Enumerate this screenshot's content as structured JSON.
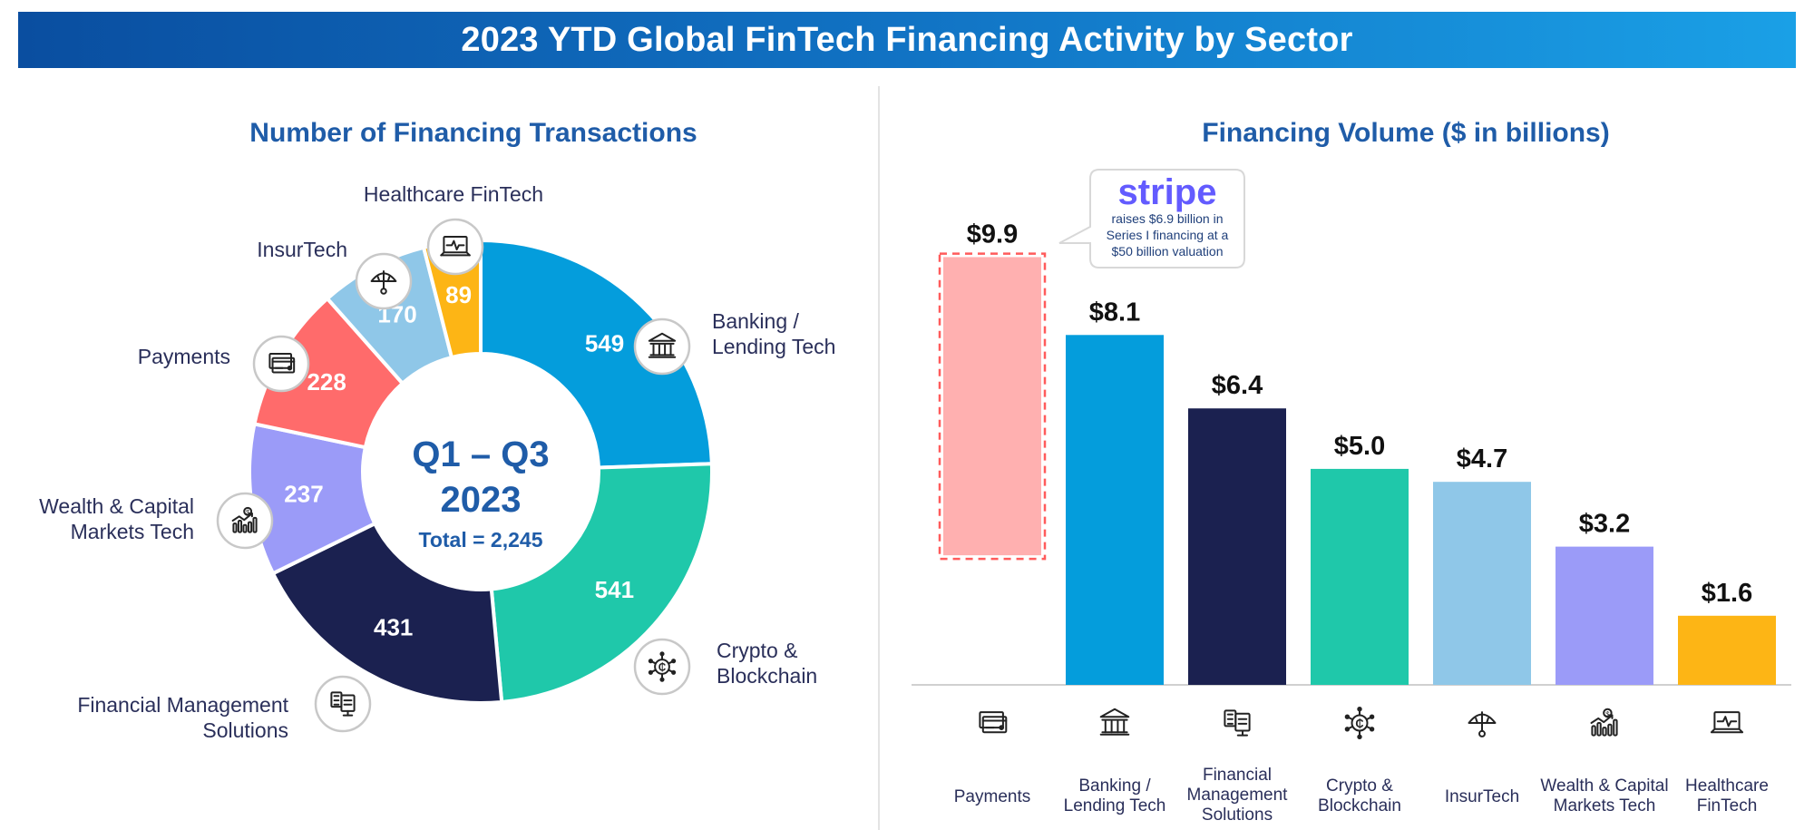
{
  "banner": {
    "title": "2023 YTD Global FinTech Financing Activity by Sector"
  },
  "left_panel": {
    "title": "Number of Financing Transactions",
    "center": {
      "line1": "Q1 – Q3",
      "line2": "2023",
      "total": "Total = 2,245"
    }
  },
  "right_panel": {
    "title": "Financing Volume ($ in billions)",
    "callout": {
      "brand": "stripe",
      "lines": [
        "raises $6.9 billion in",
        "Series I financing at a",
        "$50 billion valuation"
      ]
    }
  },
  "colors": {
    "banking": "#049ddc",
    "crypto": "#1fc8aa",
    "finmgmt": "#1b2150",
    "wealth": "#9b9bf8",
    "payments": "#ff6b6b",
    "payments_highlight": "#ffb0b0",
    "insurtech": "#8fc7e8",
    "healthcare": "#fdb515",
    "title_blue": "#1f5ca8",
    "label_navy": "#2a2f5a",
    "stripe_purple": "#635bff"
  },
  "chart_data": [
    {
      "type": "pie",
      "title": "Number of Financing Transactions",
      "categories": [
        "Banking / Lending Tech",
        "Crypto & Blockchain",
        "Financial Management Solutions",
        "Wealth & Capital Markets Tech",
        "Payments",
        "InsurTech",
        "Healthcare FinTech"
      ],
      "values": [
        549,
        541,
        431,
        237,
        228,
        170,
        89
      ],
      "colors": [
        "#049ddc",
        "#1fc8aa",
        "#1b2150",
        "#9b9bf8",
        "#ff6b6b",
        "#8fc7e8",
        "#fdb515"
      ],
      "icons": [
        "bank-icon",
        "crypto-icon",
        "finmgmt-icon",
        "wealth-icon",
        "payments-icon",
        "insurtech-icon",
        "healthcare-icon"
      ],
      "total": 2245
    },
    {
      "type": "bar",
      "title": "Financing Volume ($ in billions)",
      "categories": [
        "Payments",
        "Banking / Lending Tech",
        "Financial Management Solutions",
        "Crypto & Blockchain",
        "InsurTech",
        "Wealth & Capital Markets Tech",
        "Healthcare FinTech"
      ],
      "values": [
        9.9,
        8.1,
        6.4,
        5.0,
        4.7,
        3.2,
        1.6
      ],
      "value_labels": [
        "$9.9",
        "$8.1",
        "$6.4",
        "$5.0",
        "$4.7",
        "$3.2",
        "$1.6"
      ],
      "highlight": {
        "category": "Payments",
        "portion": 6.9
      },
      "colors": [
        "#ff6b6b",
        "#049ddc",
        "#1b2150",
        "#1fc8aa",
        "#8fc7e8",
        "#9b9bf8",
        "#fdb515"
      ],
      "icons": [
        "payments-icon",
        "bank-icon",
        "finmgmt-icon",
        "crypto-icon",
        "insurtech-icon",
        "wealth-icon",
        "healthcare-icon"
      ],
      "ylim": [
        0,
        10.5
      ]
    }
  ],
  "donut_labels": [
    {
      "lines": [
        "Banking /",
        "Lending Tech"
      ]
    },
    {
      "lines": [
        "Crypto &",
        "Blockchain"
      ]
    },
    {
      "lines": [
        "Financial Management",
        "Solutions"
      ]
    },
    {
      "lines": [
        "Wealth & Capital",
        "Markets Tech"
      ]
    },
    {
      "lines": [
        "Payments"
      ]
    },
    {
      "lines": [
        "InsurTech"
      ]
    },
    {
      "lines": [
        "Healthcare FinTech"
      ]
    }
  ],
  "bar_labels": [
    {
      "lines": [
        "Payments"
      ]
    },
    {
      "lines": [
        "Banking /",
        "Lending Tech"
      ]
    },
    {
      "lines": [
        "Financial",
        "Management",
        "Solutions"
      ]
    },
    {
      "lines": [
        "Crypto &",
        "Blockchain"
      ]
    },
    {
      "lines": [
        "InsurTech"
      ]
    },
    {
      "lines": [
        "Wealth & Capital",
        "Markets Tech"
      ]
    },
    {
      "lines": [
        "Healthcare",
        "FinTech"
      ]
    }
  ]
}
